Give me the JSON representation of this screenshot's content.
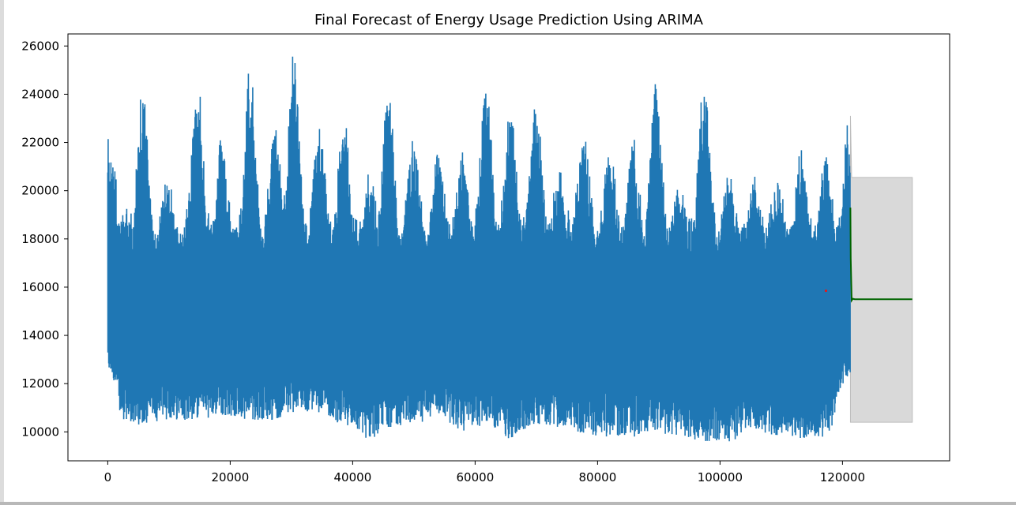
{
  "chart_data": {
    "type": "line",
    "title": "Final Forecast of Energy Usage Prediction Using ARIMA",
    "xlabel": "",
    "ylabel": "",
    "xlim": [
      -6500,
      137500
    ],
    "ylim": [
      8800,
      26500
    ],
    "xticks": [
      0,
      20000,
      40000,
      60000,
      80000,
      100000,
      120000
    ],
    "xtick_labels": [
      "0",
      "20000",
      "40000",
      "60000",
      "80000",
      "100000",
      "120000"
    ],
    "yticks": [
      10000,
      12000,
      14000,
      16000,
      18000,
      20000,
      22000,
      24000,
      26000
    ],
    "ytick_labels": [
      "10000",
      "12000",
      "14000",
      "16000",
      "18000",
      "20000",
      "22000",
      "24000",
      "26000"
    ],
    "grid": false,
    "legend": "none",
    "series": [
      {
        "role": "observed",
        "color": "#1f77b4",
        "x_range": [
          0,
          121273
        ],
        "baseline": 15000,
        "peak_x": [
          300,
          2800,
          5700,
          9800,
          14600,
          18600,
          23200,
          27300,
          30300,
          34500,
          38600,
          42700,
          45800,
          49900,
          54000,
          57900,
          61800,
          65800,
          69900,
          73800,
          77700,
          82000,
          85800,
          89500,
          93300,
          97400,
          101500,
          105500,
          109300,
          113200,
          117200,
          121000
        ],
        "peak_y": [
          22600,
          19300,
          24000,
          20600,
          24800,
          22000,
          25200,
          22600,
          25700,
          22800,
          23500,
          20500,
          24700,
          22300,
          21800,
          21800,
          24600,
          23300,
          24000,
          21000,
          22600,
          21600,
          22000,
          24400,
          20300,
          24700,
          20800,
          20700,
          20500,
          21500,
          21500,
          22800
        ],
        "trough_y": [
          12500,
          10300,
          10300,
          10500,
          10500,
          10700,
          10500,
          10500,
          10800,
          10800,
          10300,
          9700,
          10200,
          10300,
          10700,
          10000,
          10300,
          9700,
          10300,
          10200,
          9800,
          9800,
          9800,
          10000,
          9700,
          9600,
          9600,
          10100,
          9800,
          9700,
          9700,
          12300
        ]
      },
      {
        "role": "prediction",
        "color": "#e31a1c",
        "x": [
          117300
        ],
        "y": [
          15850
        ]
      },
      {
        "role": "forecast",
        "color": "#006400",
        "x": [
          121300,
          121350,
          121500,
          121700,
          122000,
          125000,
          131400
        ],
        "y": [
          19300,
          17200,
          15450,
          15520,
          15500,
          15500,
          15500
        ]
      },
      {
        "role": "confidence-interval",
        "color": "#d9d9d9",
        "x": [
          121300,
          131400
        ],
        "lower": [
          10400,
          10400
        ],
        "upper": [
          23100,
          20550
        ]
      }
    ]
  }
}
